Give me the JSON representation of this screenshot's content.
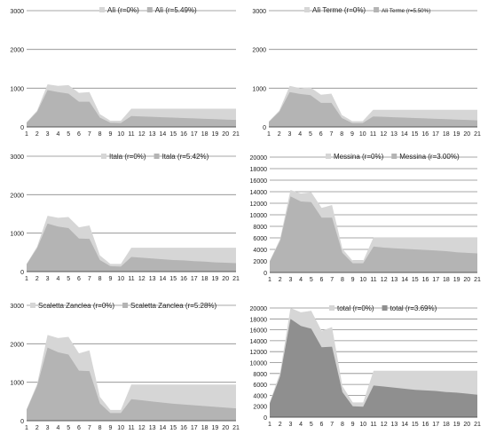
{
  "chart_data": [
    {
      "type": "area",
      "categories": [
        "1",
        "2",
        "3",
        "4",
        "5",
        "6",
        "7",
        "8",
        "9",
        "10",
        "11",
        "12",
        "13",
        "14",
        "15",
        "16",
        "17",
        "18",
        "19",
        "20",
        "21"
      ],
      "ylim": [
        0,
        3000
      ],
      "yticks": [
        "0",
        "1000",
        "2000",
        "3000"
      ],
      "legend_position": "top-right",
      "series": [
        {
          "name": "Alì (r=0%)",
          "color": "#d6d6d6",
          "values": [
            120,
            420,
            1100,
            1060,
            1080,
            880,
            900,
            330,
            160,
            160,
            470,
            470,
            470,
            470,
            470,
            470,
            470,
            470,
            470,
            470,
            470
          ]
        },
        {
          "name": "Alì (r=5.49%)",
          "color": "#b4b4b4",
          "values": [
            110,
            390,
            950,
            900,
            860,
            650,
            650,
            240,
            110,
            100,
            280,
            270,
            260,
            250,
            240,
            230,
            220,
            210,
            200,
            190,
            180
          ]
        }
      ]
    },
    {
      "type": "area",
      "categories": [
        "1",
        "2",
        "3",
        "4",
        "5",
        "6",
        "7",
        "8",
        "9",
        "10",
        "11",
        "12",
        "13",
        "14",
        "15",
        "16",
        "17",
        "18",
        "19",
        "20",
        "21"
      ],
      "ylim": [
        0,
        3000
      ],
      "yticks": [
        "0",
        "1000",
        "2000",
        "3000"
      ],
      "legend_position": "top-right",
      "series": [
        {
          "name": "Alì Terme (r=0%)",
          "color": "#d6d6d6",
          "values": [
            140,
            420,
            1060,
            1000,
            1020,
            830,
            860,
            310,
            150,
            150,
            440,
            440,
            440,
            440,
            440,
            440,
            440,
            440,
            440,
            440,
            440
          ]
        },
        {
          "name": "Alì Terme (r=5.50%)",
          "color": "#b4b4b4",
          "values": [
            130,
            390,
            900,
            850,
            820,
            620,
            620,
            230,
            100,
            100,
            270,
            260,
            250,
            240,
            230,
            220,
            210,
            200,
            190,
            180,
            170
          ]
        }
      ]
    },
    {
      "type": "area",
      "categories": [
        "1",
        "2",
        "3",
        "4",
        "5",
        "6",
        "7",
        "8",
        "9",
        "10",
        "11",
        "12",
        "13",
        "14",
        "15",
        "16",
        "17",
        "18",
        "19",
        "20",
        "21"
      ],
      "ylim": [
        0,
        3000
      ],
      "yticks": [
        "0",
        "1000",
        "2000",
        "3000"
      ],
      "legend_position": "top-right",
      "series": [
        {
          "name": "Itala (r=0%)",
          "color": "#d6d6d6",
          "values": [
            200,
            650,
            1450,
            1400,
            1420,
            1150,
            1200,
            420,
            200,
            200,
            620,
            620,
            620,
            620,
            620,
            620,
            620,
            620,
            620,
            620,
            620
          ]
        },
        {
          "name": "Itala (r=5.42%)",
          "color": "#b4b4b4",
          "values": [
            190,
            610,
            1250,
            1170,
            1130,
            860,
            850,
            300,
            140,
            130,
            380,
            360,
            340,
            320,
            300,
            290,
            270,
            260,
            240,
            230,
            220
          ]
        }
      ]
    },
    {
      "type": "area",
      "categories": [
        "1",
        "2",
        "3",
        "4",
        "5",
        "6",
        "7",
        "8",
        "9",
        "10",
        "11",
        "12",
        "13",
        "14",
        "15",
        "16",
        "17",
        "18",
        "19",
        "20",
        "21"
      ],
      "ylim": [
        0,
        20000
      ],
      "yticks": [
        "0",
        "2000",
        "4000",
        "6000",
        "8000",
        "10000",
        "12000",
        "14000",
        "16000",
        "18000",
        "20000"
      ],
      "legend_position": "top-right",
      "series": [
        {
          "name": "Messina (r=0%)",
          "color": "#d6d6d6",
          "values": [
            2000,
            5800,
            14300,
            13700,
            13900,
            11200,
            11700,
            4100,
            2000,
            2000,
            6100,
            6100,
            6100,
            6100,
            6100,
            6100,
            6100,
            6100,
            6100,
            6100,
            6100
          ]
        },
        {
          "name": "Messina (r=3.00%)",
          "color": "#b4b4b4",
          "values": [
            1900,
            5500,
            13200,
            12300,
            12200,
            9500,
            9500,
            3400,
            1600,
            1600,
            4500,
            4300,
            4200,
            4100,
            4000,
            3900,
            3800,
            3700,
            3500,
            3400,
            3300
          ]
        }
      ]
    },
    {
      "type": "area",
      "categories": [
        "1",
        "2",
        "3",
        "4",
        "5",
        "6",
        "7",
        "8",
        "9",
        "10",
        "11",
        "12",
        "13",
        "14",
        "15",
        "16",
        "17",
        "18",
        "19",
        "20",
        "21"
      ],
      "ylim": [
        0,
        3000
      ],
      "yticks": [
        "0",
        "1000",
        "2000",
        "3000"
      ],
      "legend_position": "top-right",
      "series": [
        {
          "name": "Scaletta Zanclea (r=0%)",
          "color": "#d6d6d6",
          "values": [
            300,
            950,
            2230,
            2150,
            2180,
            1750,
            1830,
            620,
            280,
            280,
            940,
            940,
            940,
            940,
            940,
            940,
            940,
            940,
            940,
            940,
            940
          ]
        },
        {
          "name": "Scaletta Zanclea (r=5.28%)",
          "color": "#b4b4b4",
          "values": [
            280,
            900,
            1900,
            1780,
            1720,
            1300,
            1290,
            450,
            200,
            200,
            560,
            530,
            500,
            470,
            440,
            420,
            400,
            380,
            360,
            340,
            320
          ]
        }
      ]
    },
    {
      "type": "area",
      "categories": [
        "1",
        "2",
        "3",
        "4",
        "5",
        "6",
        "7",
        "8",
        "9",
        "10",
        "11",
        "12",
        "13",
        "14",
        "15",
        "16",
        "17",
        "18",
        "19",
        "20",
        "21"
      ],
      "ylim": [
        0,
        20000
      ],
      "yticks": [
        "0",
        "2000",
        "4000",
        "6000",
        "8000",
        "10000",
        "12000",
        "14000",
        "16000",
        "18000",
        "20000"
      ],
      "legend_position": "top-right",
      "series": [
        {
          "name": "total (r=0%)",
          "color": "#d6d6d6",
          "values": [
            2700,
            8200,
            20000,
            19200,
            19500,
            15800,
            16500,
            5700,
            2700,
            2700,
            8500,
            8500,
            8500,
            8500,
            8500,
            8500,
            8500,
            8500,
            8500,
            8500,
            8500
          ]
        },
        {
          "name": "total (r=3.69%)",
          "color": "#8f8f8f",
          "values": [
            2500,
            7500,
            18000,
            16700,
            16200,
            12800,
            12900,
            4600,
            2000,
            1900,
            5800,
            5600,
            5400,
            5200,
            5000,
            4900,
            4800,
            4600,
            4500,
            4300,
            4100
          ]
        }
      ]
    }
  ]
}
